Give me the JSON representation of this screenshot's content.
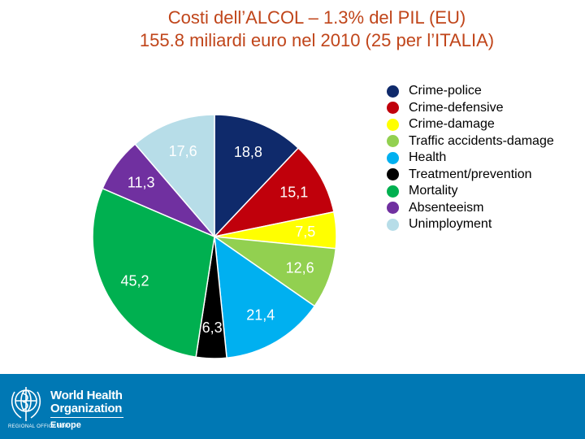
{
  "slide": {
    "title_line1": "Costi dell’ALCOL – 1.3% del PIL (EU)",
    "title_line2": "155.8 miliardi euro nel 2010 (25 per l’ITALIA)"
  },
  "chart_data": {
    "type": "pie",
    "title": "",
    "categories": [
      "Crime-police",
      "Crime-defensive",
      "Crime-damage",
      "Traffic accidents-damage",
      "Health",
      "Treatment/prevention",
      "Mortality",
      "Absenteeism",
      "Unimployment"
    ],
    "values": [
      18.8,
      15.1,
      7.5,
      12.6,
      21.4,
      6.3,
      45.2,
      11.3,
      17.6
    ],
    "data_labels": [
      "18,8",
      "15,1",
      "7,5",
      "12,6",
      "21,4",
      "6,3",
      "45,2",
      "11,3",
      "17,6"
    ],
    "colors": [
      "#0f2a6b",
      "#c0000b",
      "#ffff00",
      "#92d050",
      "#00b0f0",
      "#000000",
      "#00b050",
      "#7030a0",
      "#b7dde8"
    ],
    "label_colors": [
      "#ffffff",
      "#ffffff",
      "#ffffff",
      "#ffffff",
      "#ffffff",
      "#ffffff",
      "#ffffff",
      "#ffffff",
      "#ffffff"
    ],
    "legend_position": "right",
    "start": "top, clockwise"
  },
  "legend": {
    "items": [
      {
        "label": "Crime-police",
        "color": "#0f2a6b"
      },
      {
        "label": "Crime-defensive",
        "color": "#c0000b"
      },
      {
        "label": "Crime-damage",
        "color": "#ffff00"
      },
      {
        "label": "Traffic accidents-damage",
        "color": "#92d050"
      },
      {
        "label": "Health",
        "color": "#00b0f0"
      },
      {
        "label": "Treatment/prevention",
        "color": "#000000"
      },
      {
        "label": "Mortality",
        "color": "#00b050"
      },
      {
        "label": "Absenteeism",
        "color": "#7030a0"
      },
      {
        "label": "Unimployment",
        "color": "#b7dde8"
      }
    ]
  },
  "footer": {
    "org_line1": "World Health",
    "org_line2": "Organization",
    "regional_office": "REGIONAL OFFICE FOR",
    "region": "Europe",
    "color": "#0078b4"
  }
}
